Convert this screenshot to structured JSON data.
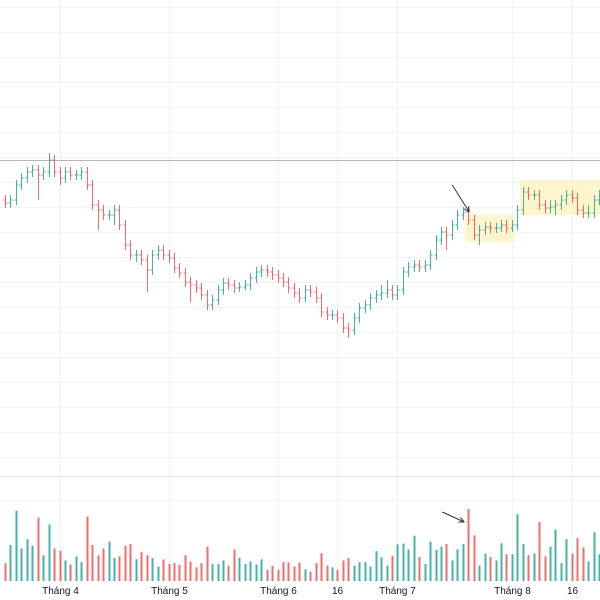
{
  "chart_data": {
    "type": "ohlc",
    "title": "",
    "colors": {
      "up": "#26a69a",
      "down": "#ef5350",
      "grid": "#f0f3fa",
      "hline": "#b2b5be",
      "highlight": "#fff3c4",
      "arrow": "#333333"
    },
    "x_tick_labels": [
      {
        "label": "Tháng 4",
        "bar": 10
      },
      {
        "label": "Tháng 5",
        "bar": 30
      },
      {
        "label": "Tháng 6",
        "bar": 50
      },
      {
        "label": "16",
        "bar": 61
      },
      {
        "label": "Tháng 7",
        "bar": 72
      },
      {
        "label": "Tháng 8",
        "bar": 93
      },
      {
        "label": "16",
        "bar": 104
      }
    ],
    "ohlc": [
      [
        40.0,
        40.5,
        39.2,
        39.7
      ],
      [
        39.7,
        40.5,
        39.2,
        40.0
      ],
      [
        40.0,
        42.0,
        39.5,
        41.5
      ],
      [
        41.5,
        42.7,
        41.0,
        42.2
      ],
      [
        42.2,
        43.3,
        41.7,
        42.8
      ],
      [
        42.8,
        43.5,
        42.3,
        43.0
      ],
      [
        43.0,
        43.5,
        40.0,
        42.5
      ],
      [
        42.5,
        43.3,
        42.0,
        42.8
      ],
      [
        42.8,
        44.7,
        42.3,
        44.0
      ],
      [
        44.0,
        44.5,
        42.3,
        42.8
      ],
      [
        42.8,
        43.3,
        41.5,
        42.2
      ],
      [
        42.2,
        43.3,
        41.7,
        42.8
      ],
      [
        42.8,
        43.3,
        42.0,
        42.5
      ],
      [
        42.5,
        43.0,
        42.0,
        42.5
      ],
      [
        42.5,
        43.3,
        42.0,
        42.8
      ],
      [
        42.8,
        43.3,
        41.0,
        41.5
      ],
      [
        41.5,
        42.0,
        39.0,
        39.5
      ],
      [
        39.5,
        40.0,
        37.0,
        39.0
      ],
      [
        39.0,
        39.5,
        38.0,
        38.5
      ],
      [
        38.5,
        39.0,
        38.0,
        38.5
      ],
      [
        38.5,
        39.5,
        37.5,
        39.0
      ],
      [
        39.0,
        39.5,
        37.0,
        37.5
      ],
      [
        37.5,
        38.0,
        35.0,
        35.5
      ],
      [
        35.5,
        36.0,
        34.0,
        34.5
      ],
      [
        34.5,
        35.0,
        33.8,
        34.5
      ],
      [
        34.5,
        35.0,
        33.5,
        34.0
      ],
      [
        34.0,
        34.5,
        30.8,
        33.0
      ],
      [
        33.0,
        35.0,
        32.5,
        34.5
      ],
      [
        34.5,
        35.5,
        34.0,
        35.0
      ],
      [
        35.0,
        35.5,
        34.0,
        34.5
      ],
      [
        34.5,
        35.0,
        33.7,
        34.2
      ],
      [
        34.2,
        34.7,
        32.7,
        33.2
      ],
      [
        33.2,
        33.7,
        32.2,
        32.7
      ],
      [
        32.7,
        33.2,
        31.3,
        31.8
      ],
      [
        31.8,
        32.3,
        29.8,
        31.5
      ],
      [
        31.5,
        32.0,
        30.7,
        31.2
      ],
      [
        31.2,
        31.7,
        30.0,
        30.5
      ],
      [
        30.5,
        31.0,
        29.0,
        29.5
      ],
      [
        29.5,
        30.5,
        29.0,
        30.0
      ],
      [
        30.0,
        31.5,
        29.5,
        31.0
      ],
      [
        31.0,
        32.2,
        30.5,
        31.7
      ],
      [
        31.7,
        32.2,
        31.0,
        31.5
      ],
      [
        31.5,
        32.0,
        30.7,
        31.2
      ],
      [
        31.2,
        31.8,
        30.8,
        31.3
      ],
      [
        31.3,
        32.0,
        31.0,
        31.5
      ],
      [
        31.5,
        32.7,
        31.0,
        32.2
      ],
      [
        32.2,
        33.3,
        31.7,
        32.8
      ],
      [
        32.8,
        33.5,
        32.3,
        33.0
      ],
      [
        33.0,
        33.5,
        32.3,
        32.8
      ],
      [
        32.8,
        33.3,
        32.0,
        32.5
      ],
      [
        32.5,
        33.0,
        31.7,
        32.2
      ],
      [
        32.2,
        32.7,
        31.3,
        31.8
      ],
      [
        31.8,
        32.3,
        30.7,
        31.2
      ],
      [
        31.2,
        31.7,
        30.2,
        30.7
      ],
      [
        30.7,
        31.2,
        29.7,
        30.2
      ],
      [
        30.2,
        31.5,
        29.8,
        31.0
      ],
      [
        31.0,
        31.5,
        30.3,
        30.8
      ],
      [
        30.8,
        31.3,
        29.7,
        30.2
      ],
      [
        30.2,
        30.7,
        28.3,
        28.8
      ],
      [
        28.8,
        29.3,
        28.0,
        28.5
      ],
      [
        28.5,
        29.0,
        28.0,
        28.5
      ],
      [
        28.5,
        29.0,
        27.7,
        28.2
      ],
      [
        28.2,
        28.7,
        26.7,
        27.2
      ],
      [
        27.2,
        27.7,
        26.2,
        27.0
      ],
      [
        27.0,
        28.7,
        26.5,
        28.2
      ],
      [
        28.2,
        29.7,
        27.7,
        29.2
      ],
      [
        29.2,
        30.0,
        28.7,
        29.5
      ],
      [
        29.5,
        30.7,
        29.0,
        30.2
      ],
      [
        30.2,
        31.0,
        29.7,
        30.5
      ],
      [
        30.5,
        31.5,
        30.0,
        30.7
      ],
      [
        30.7,
        32.0,
        30.2,
        31.0
      ],
      [
        31.0,
        31.5,
        30.0,
        30.5
      ],
      [
        30.5,
        31.5,
        30.0,
        31.0
      ],
      [
        31.0,
        33.3,
        30.5,
        32.8
      ],
      [
        32.8,
        33.8,
        32.3,
        33.3
      ],
      [
        33.3,
        34.0,
        32.8,
        33.5
      ],
      [
        33.5,
        34.0,
        32.8,
        33.3
      ],
      [
        33.3,
        34.0,
        32.8,
        33.5
      ],
      [
        33.5,
        35.0,
        33.0,
        34.5
      ],
      [
        34.5,
        36.5,
        34.0,
        36.0
      ],
      [
        36.0,
        37.3,
        35.5,
        36.8
      ],
      [
        36.8,
        37.3,
        35.0,
        36.5
      ],
      [
        36.5,
        38.0,
        36.0,
        37.5
      ],
      [
        37.5,
        39.0,
        37.0,
        38.5
      ],
      [
        38.5,
        39.3,
        38.0,
        38.8
      ],
      [
        38.8,
        39.3,
        37.5,
        38.0
      ],
      [
        38.0,
        38.5,
        36.0,
        36.5
      ],
      [
        36.5,
        37.5,
        35.5,
        37.0
      ],
      [
        37.0,
        37.8,
        36.5,
        37.3
      ],
      [
        37.3,
        37.8,
        36.7,
        37.2
      ],
      [
        37.2,
        37.7,
        36.7,
        37.2
      ],
      [
        37.2,
        38.0,
        36.8,
        37.5
      ],
      [
        37.5,
        38.0,
        36.7,
        37.2
      ],
      [
        37.2,
        38.0,
        36.8,
        37.5
      ],
      [
        37.5,
        39.5,
        37.0,
        39.0
      ],
      [
        39.0,
        41.3,
        38.5,
        40.8
      ],
      [
        40.8,
        41.3,
        40.0,
        40.5
      ],
      [
        40.5,
        41.0,
        40.0,
        40.5
      ],
      [
        40.5,
        41.0,
        39.0,
        39.5
      ],
      [
        39.5,
        40.0,
        38.7,
        39.2
      ],
      [
        39.2,
        40.0,
        38.7,
        39.3
      ],
      [
        39.3,
        40.0,
        38.5,
        39.5
      ],
      [
        39.5,
        40.5,
        39.0,
        40.0
      ],
      [
        40.0,
        41.0,
        39.5,
        40.5
      ],
      [
        40.5,
        41.0,
        39.7,
        40.2
      ],
      [
        40.2,
        40.7,
        38.5,
        39.0
      ],
      [
        39.0,
        39.5,
        38.2,
        38.7
      ],
      [
        38.7,
        39.5,
        38.2,
        38.7
      ],
      [
        38.7,
        40.5,
        38.2,
        40.0
      ],
      [
        40.0,
        41.0,
        39.5,
        40.5
      ]
    ],
    "volume": [
      52,
      105,
      205,
      95,
      122,
      103,
      185,
      75,
      165,
      95,
      88,
      60,
      48,
      72,
      55,
      188,
      105,
      75,
      95,
      115,
      67,
      72,
      103,
      108,
      64,
      84,
      75,
      67,
      42,
      63,
      50,
      52,
      47,
      75,
      57,
      40,
      52,
      100,
      50,
      50,
      60,
      45,
      92,
      68,
      50,
      57,
      48,
      63,
      33,
      44,
      33,
      55,
      54,
      42,
      54,
      34,
      27,
      52,
      81,
      45,
      40,
      33,
      60,
      67,
      45,
      55,
      55,
      42,
      87,
      69,
      45,
      73,
      107,
      109,
      92,
      132,
      70,
      50,
      115,
      91,
      100,
      108,
      60,
      92,
      108,
      210,
      133,
      45,
      80,
      70,
      60,
      110,
      78,
      78,
      195,
      108,
      75,
      80,
      172,
      72,
      100,
      150,
      52,
      122,
      80,
      125,
      98,
      57,
      142,
      78
    ],
    "annotations": {
      "horizontal_line_price": 44.0,
      "highlight_boxes": [
        {
          "from_bar": 85,
          "to_bar": 93,
          "price_high": 38.5,
          "price_low": 35.8
        },
        {
          "from_bar": 95,
          "to_bar": 109,
          "price_high": 42.0,
          "price_low": 38.5
        }
      ],
      "arrows": [
        {
          "pane": "price",
          "points_to_bar": 85
        },
        {
          "pane": "volume",
          "points_to_bar": 85
        }
      ]
    },
    "grid": true,
    "price_axis_visible": false
  }
}
